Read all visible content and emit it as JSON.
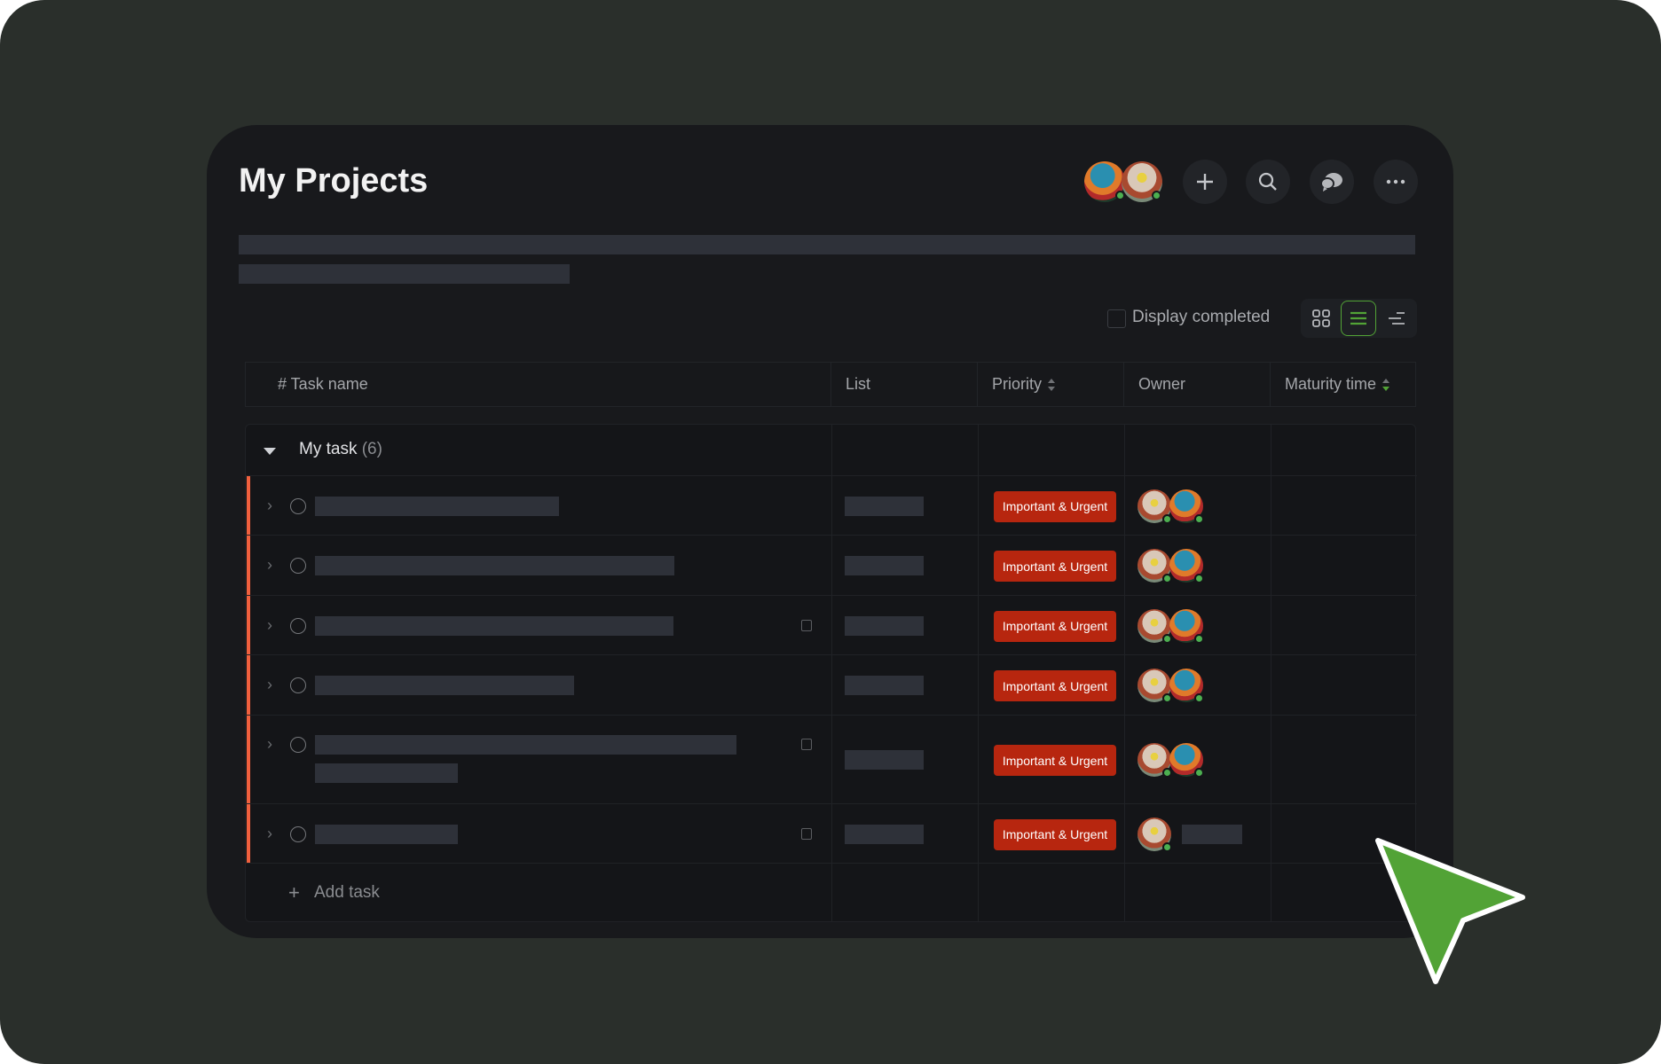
{
  "header": {
    "title": "My Projects",
    "actions": [
      {
        "name": "add",
        "icon": "plus-icon"
      },
      {
        "name": "search",
        "icon": "search-icon"
      },
      {
        "name": "chat",
        "icon": "chat-bubbles-icon"
      },
      {
        "name": "more",
        "icon": "more-horizontal-icon"
      }
    ]
  },
  "toolbar": {
    "display_completed_label": "Display completed",
    "display_completed_checked": false,
    "views": [
      "grid-view-icon",
      "list-view-icon",
      "gantt-view-icon"
    ],
    "active_view": "list-view-icon",
    "accent_color": "#52a336"
  },
  "table": {
    "columns": [
      "# Task name",
      "List",
      "Priority",
      "Owner",
      "Maturity time"
    ],
    "sortable": [
      "Priority",
      "Maturity time"
    ],
    "group": {
      "label": "My task",
      "count": "(6)"
    },
    "priority_color": "#b7260f",
    "rows": [
      {
        "priority": "Important & Urgent",
        "has_attachment": false,
        "owners": 2
      },
      {
        "priority": "Important & Urgent",
        "has_attachment": false,
        "owners": 2
      },
      {
        "priority": "Important & Urgent",
        "has_attachment": true,
        "owners": 2
      },
      {
        "priority": "Important & Urgent",
        "has_attachment": false,
        "owners": 2
      },
      {
        "priority": "Important & Urgent",
        "has_attachment": true,
        "owners": 2
      },
      {
        "priority": "Important & Urgent",
        "has_attachment": true,
        "owners": 1
      }
    ],
    "add_task_label": "Add task"
  },
  "cursor": {
    "color": "#52a336"
  }
}
